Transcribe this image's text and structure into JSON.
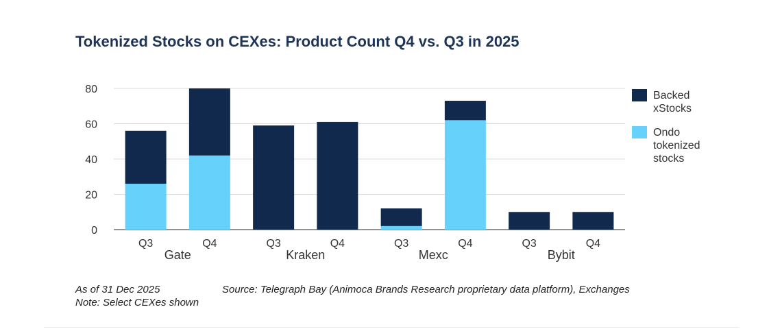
{
  "chart_data": {
    "type": "bar",
    "stacked": true,
    "title": "Tokenized Stocks on CEXes: Product Count Q4 vs. Q3 in 2025",
    "categories": [
      "Q3",
      "Q4",
      "Q3",
      "Q4",
      "Q3",
      "Q4",
      "Q3",
      "Q4"
    ],
    "groups": [
      "Gate",
      "Kraken",
      "Mexc",
      "Bybit"
    ],
    "series": [
      {
        "name": "Ondo tokenized stocks",
        "color": "#66d2fb",
        "values": [
          26,
          42,
          0,
          0,
          2,
          62,
          0,
          0
        ]
      },
      {
        "name": "Backed xStocks",
        "color": "#12294e",
        "values": [
          30,
          38,
          59,
          61,
          10,
          11,
          10,
          10
        ]
      }
    ],
    "legend": [
      {
        "name": "Backed xStocks",
        "lines": [
          "Backed",
          "xStocks"
        ],
        "color": "#12294e"
      },
      {
        "name": "Ondo tokenized stocks",
        "lines": [
          "Ondo",
          "tokenized",
          "stocks"
        ],
        "color": "#66d2fb"
      }
    ],
    "ylim": [
      0,
      80
    ],
    "yticks": [
      0,
      20,
      40,
      60,
      80
    ],
    "xlabel": "",
    "ylabel": "",
    "grid": true,
    "legend_position": "right"
  },
  "footer": {
    "date_note": "As of 31 Dec 2025",
    "source": "Source: Telegraph Bay (Animoca Brands Research proprietary data platform), Exchanges",
    "note": "Note: Select CEXes shown"
  }
}
